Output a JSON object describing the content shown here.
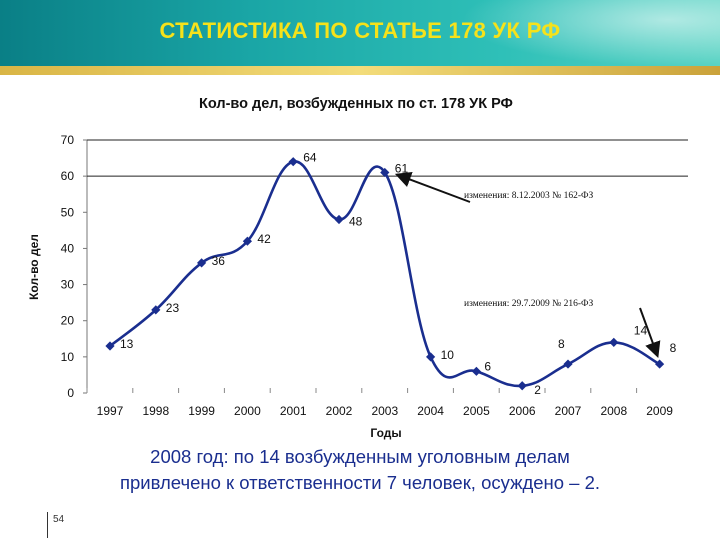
{
  "slide": {
    "title": "СТАТИСТИКА ПО СТАТЬЕ 178 УК РФ",
    "caption_line1": "2008 год: по 14 возбужденным уголовным делам",
    "caption_line2": "привлечено к ответственности 7 человек, осуждено – 2.",
    "page_number": "54"
  },
  "colors": {
    "line": "#1a2e8f",
    "title_text": "#f6e21a",
    "caption_text": "#1a2e8f"
  },
  "chart_data": {
    "type": "line",
    "title": "Кол-во дел, возбужденных по ст. 178 УК РФ",
    "xlabel": "Годы",
    "ylabel": "Кол-во дел",
    "ylim": [
      0,
      70
    ],
    "yticks": [
      0,
      10,
      20,
      30,
      40,
      50,
      60,
      70
    ],
    "grid": false,
    "smooth": true,
    "x": [
      "1997",
      "1998",
      "1999",
      "2000",
      "2001",
      "2002",
      "2003",
      "2004",
      "2005",
      "2006",
      "2007",
      "2008",
      "2009"
    ],
    "series": [
      {
        "values": [
          13,
          23,
          36,
          42,
          64,
          48,
          61,
          10,
          6,
          2,
          8,
          14,
          8
        ]
      }
    ],
    "annotations": [
      {
        "text": "изменения: 8.12.2003 № 162-ФЗ",
        "points_to": "2003"
      },
      {
        "text": "изменения: 29.7.2009 № 216-ФЗ",
        "points_to": "2009"
      }
    ]
  }
}
